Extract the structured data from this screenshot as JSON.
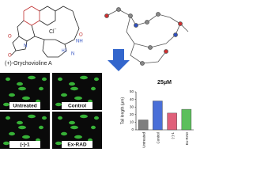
{
  "structure": {
    "name": "(+)-Orychovioline A",
    "counterion": "Cl",
    "counterion_charge": "−",
    "atoms": [
      "O",
      "O",
      "N",
      "O",
      "NH",
      "N",
      "H2"
    ]
  },
  "panels": [
    "Untreated",
    "Control",
    "(-)-1",
    "Ex-RAD"
  ],
  "chart_data": {
    "type": "bar",
    "title": "25μM",
    "y_label": "Tail length (μm)",
    "categories": [
      "Untreated",
      "Control",
      "(-)-1",
      "Ex-RAD"
    ],
    "values": [
      13,
      38,
      22,
      27
    ],
    "colors": [
      "#7f7f7f",
      "#4a6fd8",
      "#e0607a",
      "#5cbf5c"
    ],
    "ylim": [
      0,
      50
    ],
    "yticks": [
      0,
      10,
      20,
      30,
      40,
      50
    ]
  }
}
